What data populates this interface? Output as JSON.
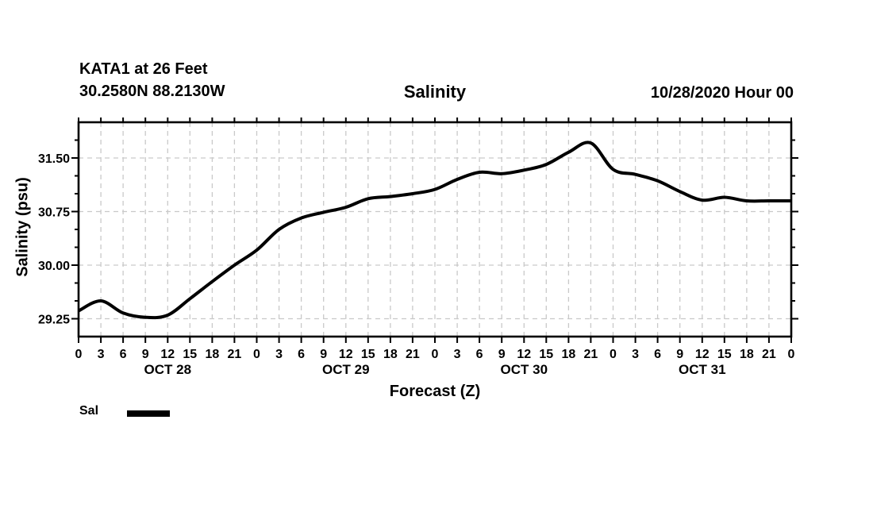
{
  "header": {
    "station": "KATA1 at 26 Feet",
    "coordinates": "30.2580N 88.2130W",
    "title": "Salinity",
    "run_datetime": "10/28/2020 Hour 00"
  },
  "legend": {
    "label": "Sal"
  },
  "chart_data": {
    "type": "line",
    "title": "Salinity",
    "xlabel": "Forecast (Z)",
    "ylabel": "Salinity (psu)",
    "x_unit": "forecast hours (Z)",
    "x_range_hours": [
      0,
      96
    ],
    "x_tick_interval_hours": 3,
    "x_tick_label_rule": "hour-of-day",
    "day_labels": [
      "OCT 28",
      "OCT 29",
      "OCT 30",
      "OCT 31"
    ],
    "day_label_center_hours": [
      12,
      36,
      60,
      84
    ],
    "ylim": [
      29.0,
      32.0
    ],
    "y_major_ticks": [
      "29.25",
      "30.00",
      "30.75",
      "31.50"
    ],
    "y_minor_tick_step": 0.25,
    "grid": true,
    "legend_position": "bottom-left",
    "series": [
      {
        "name": "Sal",
        "color": "#000000",
        "hours": [
          0,
          3,
          6,
          9,
          12,
          15,
          18,
          21,
          24,
          27,
          30,
          33,
          36,
          39,
          42,
          45,
          48,
          51,
          54,
          57,
          60,
          63,
          66,
          69,
          72,
          75,
          78,
          81,
          84,
          87,
          90,
          93,
          96
        ],
        "values": [
          29.36,
          29.5,
          29.33,
          29.27,
          29.3,
          29.53,
          29.77,
          30.0,
          30.21,
          30.5,
          30.66,
          30.74,
          30.81,
          30.93,
          30.96,
          31.0,
          31.06,
          31.2,
          31.3,
          31.28,
          31.33,
          31.41,
          31.58,
          31.71,
          31.34,
          31.27,
          31.18,
          31.03,
          30.91,
          30.95,
          30.9,
          30.9,
          30.9
        ]
      }
    ],
    "colors": {
      "line": "#000000",
      "grid": "#c9c9c9",
      "axis": "#000000",
      "background": "#ffffff",
      "text": "#000000"
    }
  }
}
